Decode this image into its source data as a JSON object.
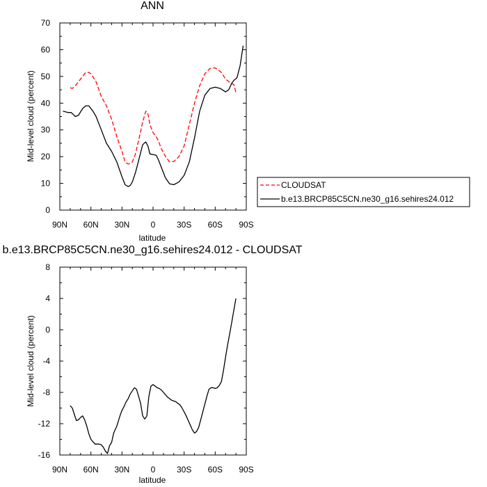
{
  "chart_data": [
    {
      "type": "line",
      "title": "ANN",
      "xlabel": "latitude",
      "ylabel": "Mid-level cloud (percent)",
      "xlim": [
        -90,
        90
      ],
      "ylim": [
        0,
        70
      ],
      "x_ticks": [
        -90,
        -60,
        -30,
        0,
        30,
        60,
        90
      ],
      "x_tick_labels": [
        "90N",
        "60N",
        "30N",
        "0",
        "30S",
        "60S",
        "90S"
      ],
      "y_ticks": [
        0,
        10,
        20,
        30,
        40,
        50,
        60,
        70
      ],
      "y_tick_labels": [
        "0",
        "10",
        "20",
        "30",
        "40",
        "50",
        "60",
        "70"
      ],
      "grid": false,
      "legend": "right",
      "series": [
        {
          "name": "CLOUDSAT",
          "color": "#ff0000",
          "dash": "dashed",
          "x": [
            -80,
            -78,
            -75,
            -70,
            -65,
            -62,
            -60,
            -55,
            -50,
            -45,
            -40,
            -35,
            -30,
            -27,
            -24,
            -20,
            -17,
            -14,
            -10,
            -7,
            -5,
            -3,
            0,
            3,
            5,
            8,
            12,
            16,
            20,
            25,
            30,
            35,
            40,
            45,
            50,
            55,
            60,
            63,
            66,
            70,
            75,
            78,
            80
          ],
          "y": [
            45.8,
            45.5,
            46.5,
            49,
            51.5,
            51.5,
            51,
            48,
            42.5,
            39,
            34,
            27.5,
            22,
            18,
            17.2,
            18,
            21,
            26,
            33,
            37,
            36,
            32,
            29,
            27.5,
            26,
            23,
            20,
            18,
            18.2,
            20,
            24,
            32,
            40,
            46.5,
            51,
            53,
            53.2,
            52.5,
            51.5,
            49,
            47.5,
            47,
            44
          ]
        },
        {
          "name": "b.e13.BRCP85C5CN.ne30_g16.sehires24.012",
          "color": "#000000",
          "dash": "solid",
          "x": [
            -87,
            -82,
            -79,
            -75,
            -72,
            -68,
            -65,
            -62,
            -58,
            -55,
            -50,
            -45,
            -40,
            -35,
            -30,
            -27,
            -24,
            -22,
            -20,
            -17,
            -14,
            -10,
            -7,
            -5,
            -3,
            0,
            3,
            5,
            8,
            12,
            16,
            20,
            25,
            30,
            35,
            40,
            45,
            50,
            55,
            60,
            65,
            70,
            73,
            76,
            78,
            81,
            84,
            87
          ],
          "y": [
            37,
            36.5,
            36.5,
            35,
            35.5,
            38,
            39,
            39,
            37,
            35,
            30,
            25,
            22,
            18,
            12.5,
            9.5,
            8.8,
            9.2,
            10.5,
            14,
            18.5,
            24.5,
            25.5,
            24,
            21,
            20.8,
            20.5,
            19,
            16,
            12,
            9.8,
            9.5,
            10.5,
            13,
            18,
            27,
            37,
            43,
            45.5,
            46,
            45.5,
            44.2,
            45,
            47.5,
            48.5,
            49.5,
            54,
            61.5
          ]
        }
      ]
    },
    {
      "type": "line",
      "title": "b.e13.BRCP85C5CN.ne30_g16.sehires24.012 - CLOUDSAT",
      "xlabel": "latitude",
      "ylabel": "Mid-level cloud (percent)",
      "xlim": [
        -90,
        90
      ],
      "ylim": [
        -16,
        8
      ],
      "x_ticks": [
        -90,
        -60,
        -30,
        0,
        30,
        60,
        90
      ],
      "x_tick_labels": [
        "90N",
        "60N",
        "30N",
        "0",
        "30S",
        "60S",
        "90S"
      ],
      "y_ticks": [
        -16,
        -12,
        -8,
        -4,
        0,
        4,
        8
      ],
      "y_tick_labels": [
        "-16",
        "-12",
        "-8",
        "-4",
        "0",
        "4",
        "8"
      ],
      "grid": false,
      "legend": "none",
      "series": [
        {
          "color": "#000000",
          "dash": "solid",
          "x": [
            -80,
            -78,
            -76,
            -74,
            -72,
            -70,
            -68,
            -66,
            -64,
            -62,
            -60,
            -58,
            -56,
            -54,
            -52,
            -50,
            -48,
            -46,
            -44,
            -42,
            -40,
            -38,
            -35,
            -32,
            -30,
            -28,
            -26,
            -24,
            -22,
            -20,
            -18,
            -16,
            -14,
            -12,
            -10,
            -8,
            -6,
            -4,
            -2,
            0,
            2,
            4,
            6,
            8,
            10,
            12,
            14,
            16,
            18,
            20,
            22,
            24,
            26,
            28,
            30,
            32,
            34,
            36,
            38,
            40,
            42,
            44,
            46,
            48,
            50,
            52,
            54,
            56,
            58,
            60,
            62,
            64,
            66,
            68,
            70,
            72,
            74,
            76,
            78,
            80
          ],
          "y": [
            -9.7,
            -10,
            -10.8,
            -11.6,
            -11.5,
            -11.2,
            -11,
            -11.5,
            -12.3,
            -13.3,
            -14,
            -14.3,
            -14.6,
            -14.6,
            -14.6,
            -14.7,
            -15,
            -15.5,
            -15.8,
            -14.8,
            -14.4,
            -13.2,
            -12.3,
            -11,
            -10.3,
            -9.8,
            -9.2,
            -8.8,
            -8.2,
            -7.8,
            -7.4,
            -7.6,
            -8.5,
            -9.4,
            -11,
            -11.4,
            -11,
            -8.5,
            -7.2,
            -7,
            -7.2,
            -7.4,
            -7.5,
            -7.7,
            -8,
            -8.3,
            -8.6,
            -8.8,
            -9,
            -9.1,
            -9.2,
            -9.4,
            -9.6,
            -10,
            -10.5,
            -11,
            -11.6,
            -12.2,
            -12.8,
            -13.2,
            -13,
            -12.5,
            -11.5,
            -10.5,
            -9.5,
            -8.5,
            -7.6,
            -7.4,
            -7.4,
            -7.5,
            -7.4,
            -7.1,
            -6.6,
            -5.2,
            -3.5,
            -1.9,
            -0.5,
            1.0,
            2.5,
            4.0
          ]
        }
      ]
    }
  ]
}
